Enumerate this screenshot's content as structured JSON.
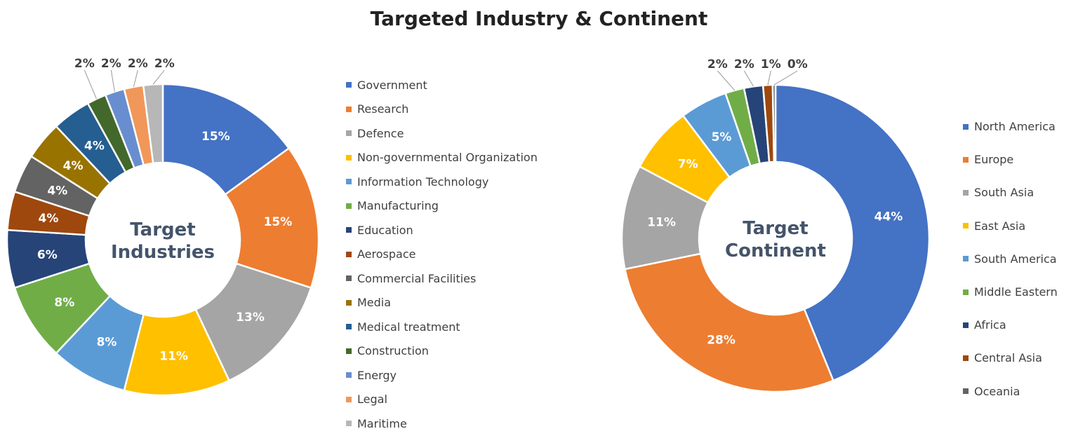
{
  "title": "Targeted Industry & Continent",
  "chart_data": [
    {
      "type": "pie",
      "donut": true,
      "center_label": "Target Industries",
      "legend_position": "right",
      "categories": [
        "Government",
        "Research",
        "Defence",
        "Non-governmental Organization",
        "Information Technology",
        "Manufacturing",
        "Education",
        "Aerospace",
        "Commercial Facilities",
        "Media",
        "Medical treatment",
        "Construction",
        "Energy",
        "Legal",
        "Maritime"
      ],
      "values": [
        15,
        15,
        13,
        11,
        8,
        8,
        6,
        4,
        4,
        4,
        4,
        2,
        2,
        2,
        2
      ],
      "labels": [
        "15%",
        "15%",
        "13%",
        "11%",
        "8%",
        "8%",
        "6%",
        "4%",
        "4%",
        "4%",
        "4%",
        "2%",
        "2%",
        "2%",
        "2%"
      ],
      "colors": [
        "#4472C4",
        "#ED7D31",
        "#A5A5A5",
        "#FFC000",
        "#5B9BD5",
        "#70AD47",
        "#264478",
        "#9E480E",
        "#636363",
        "#997300",
        "#255E91",
        "#43682B",
        "#698ED0",
        "#F1975A",
        "#B7B7B7"
      ]
    },
    {
      "type": "pie",
      "donut": true,
      "center_label": "Target Continent",
      "legend_position": "right",
      "categories": [
        "North America",
        "Europe",
        "South Asia",
        "East Asia",
        "South America",
        "Middle Eastern",
        "Africa",
        "Central Asia",
        "Oceania"
      ],
      "values": [
        44,
        28,
        11,
        7,
        5,
        2,
        2,
        1,
        0
      ],
      "labels": [
        "44%",
        "28%",
        "11%",
        "7%",
        "5%",
        "2%",
        "2%",
        "1%",
        "0%"
      ],
      "colors": [
        "#4472C4",
        "#ED7D31",
        "#A5A5A5",
        "#FFC000",
        "#5B9BD5",
        "#70AD47",
        "#264478",
        "#9E480E",
        "#636363"
      ]
    }
  ]
}
